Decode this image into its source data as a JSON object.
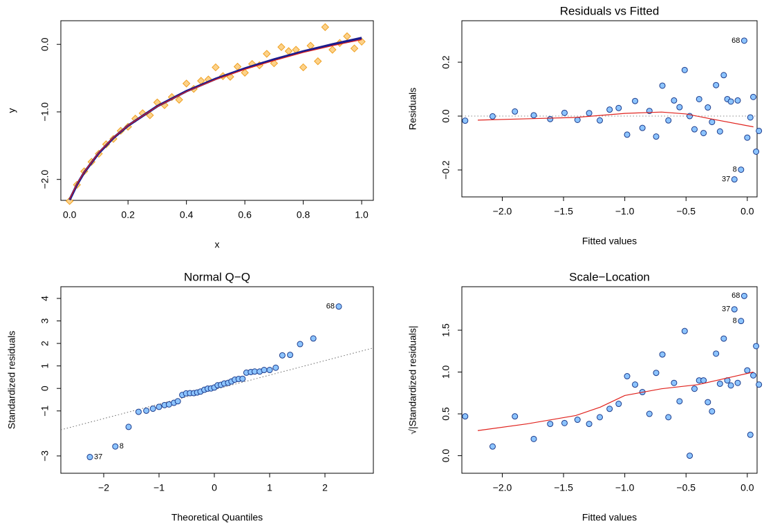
{
  "chart_data": [
    {
      "type": "scatter",
      "x_label": "x",
      "y_label": "y",
      "xlim": [
        -0.03,
        1.04
      ],
      "ylim": [
        -2.31,
        0.35
      ],
      "xticks": [
        {
          "value": 0,
          "label": "0.0"
        },
        {
          "value": 0.2,
          "label": "0.2"
        },
        {
          "value": 0.4,
          "label": "0.4"
        },
        {
          "value": 0.6,
          "label": "0.6"
        },
        {
          "value": 0.8,
          "label": "0.8"
        },
        {
          "value": 1,
          "label": "1.0"
        }
      ],
      "yticks": [
        {
          "value": -2,
          "label": "−2.0"
        },
        {
          "value": -1,
          "label": "−1.0"
        },
        {
          "value": 0,
          "label": "0.0"
        }
      ],
      "series": [
        {
          "kind": "points",
          "marker": "diamond",
          "color": "#f0a020",
          "fill": "#fcd28a",
          "x": [
            0,
            0.025,
            0.05,
            0.075,
            0.1,
            0.125,
            0.15,
            0.175,
            0.2,
            0.225,
            0.25,
            0.275,
            0.3,
            0.325,
            0.35,
            0.375,
            0.4,
            0.425,
            0.45,
            0.475,
            0.5,
            0.525,
            0.55,
            0.575,
            0.6,
            0.625,
            0.65,
            0.675,
            0.7,
            0.725,
            0.75,
            0.775,
            0.8,
            0.825,
            0.85,
            0.875,
            0.9,
            0.925,
            0.95,
            0.975,
            1.0
          ],
          "values": [
            -2.32,
            -2.08,
            -1.88,
            -1.74,
            -1.62,
            -1.48,
            -1.4,
            -1.28,
            -1.22,
            -1.1,
            -1.02,
            -1.05,
            -0.86,
            -0.9,
            -0.78,
            -0.82,
            -0.58,
            -0.66,
            -0.54,
            -0.52,
            -0.34,
            -0.47,
            -0.48,
            -0.33,
            -0.42,
            -0.29,
            -0.31,
            -0.14,
            -0.28,
            -0.04,
            -0.1,
            -0.08,
            -0.34,
            -0.02,
            -0.25,
            0.255,
            -0.08,
            0.02,
            0.12,
            -0.06,
            0.04
          ]
        },
        {
          "kind": "line",
          "color": "#1c1c8e",
          "width": 3.5,
          "x": [
            0,
            0.025,
            0.05,
            0.1,
            0.15,
            0.2,
            0.3,
            0.4,
            0.5,
            0.6,
            0.7,
            0.8,
            0.9,
            1.0
          ],
          "values": [
            -2.303,
            -2.079,
            -1.897,
            -1.609,
            -1.386,
            -1.204,
            -0.916,
            -0.693,
            -0.511,
            -0.357,
            -0.223,
            -0.105,
            0.0,
            0.095
          ]
        },
        {
          "kind": "line",
          "color": "#e0201b",
          "width": 1.2,
          "x": [
            0,
            0.025,
            0.05,
            0.1,
            0.15,
            0.2,
            0.3,
            0.4,
            0.5,
            0.6,
            0.7,
            0.8,
            0.9,
            1.0
          ],
          "values": [
            -2.29,
            -2.07,
            -1.89,
            -1.6,
            -1.38,
            -1.2,
            -0.92,
            -0.7,
            -0.52,
            -0.37,
            -0.24,
            -0.12,
            -0.02,
            0.07
          ]
        }
      ]
    },
    {
      "type": "scatter",
      "title": "Residuals vs Fitted",
      "x_label": "Fitted values",
      "y_label": "Residuals",
      "xlim": [
        -2.33,
        0.08
      ],
      "ylim": [
        -0.3,
        0.354
      ],
      "xticks": [
        {
          "value": -2,
          "label": "−2.0"
        },
        {
          "value": -1.5,
          "label": "−1.5"
        },
        {
          "value": -1,
          "label": "−1.0"
        },
        {
          "value": -0.5,
          "label": "−0.5"
        },
        {
          "value": 0,
          "label": "0.0"
        }
      ],
      "yticks": [
        {
          "value": -0.2,
          "label": "−0.2"
        },
        {
          "value": 0,
          "label": "0.0"
        },
        {
          "value": 0.2,
          "label": "0.2"
        }
      ],
      "series": [
        {
          "kind": "dotted",
          "color": "#888888",
          "x": [
            -2.33,
            0.08
          ],
          "values": [
            0,
            0
          ]
        },
        {
          "kind": "points",
          "marker": "circle",
          "color": "#1a3a8a",
          "fill": "#8cc4ff",
          "x": [
            -2.303,
            -2.079,
            -1.897,
            -1.743,
            -1.609,
            -1.492,
            -1.386,
            -1.291,
            -1.204,
            -1.124,
            -1.05,
            -0.981,
            -0.916,
            -0.856,
            -0.799,
            -0.744,
            -0.693,
            -0.644,
            -0.598,
            -0.553,
            -0.511,
            -0.47,
            -0.431,
            -0.393,
            -0.357,
            -0.322,
            -0.288,
            -0.255,
            -0.223,
            -0.192,
            -0.163,
            -0.134,
            -0.105,
            -0.078,
            -0.051,
            -0.025,
            0.0,
            0.025,
            0.049,
            0.072,
            0.095
          ],
          "values": [
            -0.017,
            -0.001,
            0.017,
            0.003,
            -0.011,
            0.012,
            -0.014,
            0.011,
            -0.016,
            0.024,
            0.03,
            -0.069,
            0.056,
            -0.044,
            0.019,
            -0.076,
            0.113,
            -0.016,
            0.058,
            0.033,
            0.171,
            0.0,
            -0.049,
            0.063,
            -0.063,
            0.032,
            -0.022,
            0.115,
            -0.057,
            0.152,
            0.063,
            0.054,
            -0.235,
            0.058,
            -0.199,
            0.28,
            -0.08,
            -0.005,
            0.071,
            -0.132,
            -0.055
          ],
          "point_labels": [
            null,
            null,
            null,
            null,
            null,
            null,
            null,
            null,
            null,
            null,
            null,
            null,
            null,
            null,
            null,
            null,
            null,
            null,
            null,
            null,
            null,
            null,
            null,
            null,
            null,
            null,
            null,
            null,
            null,
            null,
            null,
            null,
            "37",
            null,
            "8",
            "68",
            null,
            null,
            null,
            null,
            null
          ]
        },
        {
          "kind": "line",
          "color": "#e0201b",
          "width": 1.2,
          "x": [
            -2.2,
            -1.8,
            -1.4,
            -1.0,
            -0.7,
            -0.5,
            -0.3,
            0.05
          ],
          "values": [
            -0.015,
            -0.01,
            -0.005,
            0.01,
            0.015,
            0.008,
            -0.01,
            -0.04
          ]
        }
      ]
    },
    {
      "type": "scatter",
      "title": "Normal Q−Q",
      "x_label": "Theoretical Quantiles",
      "y_label": "Standardized residuals",
      "xlim": [
        -2.775,
        2.875
      ],
      "ylim": [
        -3.77,
        4.52
      ],
      "xticks": [
        {
          "value": -2,
          "label": "−2"
        },
        {
          "value": -1,
          "label": "−1"
        },
        0,
        1,
        2
      ],
      "yticks": [
        {
          "value": -3,
          "label": "−3"
        },
        {
          "value": -1,
          "label": "−1"
        },
        0,
        1,
        2,
        3,
        4
      ],
      "series": [
        {
          "kind": "dotted",
          "color": "#666666",
          "x": [
            -2.775,
            2.875
          ],
          "values": [
            -1.84,
            1.8
          ]
        },
        {
          "kind": "points",
          "marker": "circle",
          "color": "#1a3a8a",
          "fill": "#8cc4ff",
          "x": [
            -2.25,
            -1.79,
            -1.55,
            -1.37,
            -1.23,
            -1.11,
            -1.0,
            -0.9,
            -0.82,
            -0.73,
            -0.66,
            -0.58,
            -0.51,
            -0.44,
            -0.37,
            -0.31,
            -0.25,
            -0.18,
            -0.12,
            -0.06,
            0,
            0.06,
            0.12,
            0.18,
            0.25,
            0.31,
            0.37,
            0.44,
            0.51,
            0.58,
            0.66,
            0.73,
            0.82,
            0.9,
            1.0,
            1.11,
            1.23,
            1.37,
            1.55,
            1.79,
            2.25
          ],
          "values": [
            -3.05,
            -2.58,
            -1.71,
            -1.04,
            -0.99,
            -0.9,
            -0.82,
            -0.74,
            -0.71,
            -0.64,
            -0.57,
            -0.29,
            -0.22,
            -0.21,
            -0.21,
            -0.18,
            -0.14,
            -0.06,
            -0.01,
            0.0,
            0.04,
            0.14,
            0.16,
            0.22,
            0.25,
            0.31,
            0.39,
            0.42,
            0.43,
            0.7,
            0.73,
            0.75,
            0.75,
            0.82,
            0.82,
            0.92,
            1.47,
            1.49,
            1.97,
            2.22,
            3.64
          ],
          "point_labels": [
            "37",
            "8",
            null,
            null,
            null,
            null,
            null,
            null,
            null,
            null,
            null,
            null,
            null,
            null,
            null,
            null,
            null,
            null,
            null,
            null,
            null,
            null,
            null,
            null,
            null,
            null,
            null,
            null,
            null,
            null,
            null,
            null,
            null,
            null,
            null,
            null,
            null,
            null,
            null,
            null,
            "68"
          ]
        }
      ]
    },
    {
      "type": "scatter",
      "title": "Scale−Location",
      "x_label": "Fitted values",
      "y_label": "√|Standardized residuals|",
      "xlim": [
        -2.33,
        0.08
      ],
      "ylim": [
        -0.21,
        2.02
      ],
      "xticks": [
        {
          "value": -2,
          "label": "−2.0"
        },
        {
          "value": -1.5,
          "label": "−1.5"
        },
        {
          "value": -1,
          "label": "−1.0"
        },
        {
          "value": -0.5,
          "label": "−0.5"
        },
        {
          "value": 0,
          "label": "0.0"
        }
      ],
      "yticks": [
        {
          "value": 0,
          "label": "0.0"
        },
        {
          "value": 0.5,
          "label": "0.5"
        },
        {
          "value": 1,
          "label": "1.0"
        },
        {
          "value": 1.5,
          "label": "1.5"
        }
      ],
      "series": [
        {
          "kind": "points",
          "marker": "circle",
          "color": "#1a3a8a",
          "fill": "#8cc4ff",
          "x": [
            -2.303,
            -2.079,
            -1.897,
            -1.743,
            -1.609,
            -1.492,
            -1.386,
            -1.291,
            -1.204,
            -1.124,
            -1.05,
            -0.981,
            -0.916,
            -0.856,
            -0.799,
            -0.744,
            -0.693,
            -0.644,
            -0.598,
            -0.553,
            -0.511,
            -0.47,
            -0.431,
            -0.393,
            -0.357,
            -0.322,
            -0.288,
            -0.255,
            -0.223,
            -0.192,
            -0.163,
            -0.134,
            -0.105,
            -0.078,
            -0.051,
            -0.025,
            0.0,
            0.025,
            0.049,
            0.072,
            0.095
          ],
          "values": [
            0.47,
            0.11,
            0.47,
            0.2,
            0.38,
            0.39,
            0.43,
            0.38,
            0.46,
            0.56,
            0.62,
            0.95,
            0.85,
            0.76,
            0.5,
            0.99,
            1.21,
            0.46,
            0.87,
            0.65,
            1.49,
            0.0,
            0.8,
            0.9,
            0.9,
            0.64,
            0.53,
            1.22,
            0.86,
            1.4,
            0.9,
            0.84,
            1.75,
            0.87,
            1.61,
            1.91,
            1.02,
            0.25,
            0.96,
            1.31,
            0.85
          ],
          "point_labels": [
            null,
            null,
            null,
            null,
            null,
            null,
            null,
            null,
            null,
            null,
            null,
            null,
            null,
            null,
            null,
            null,
            null,
            null,
            null,
            null,
            null,
            null,
            null,
            null,
            null,
            null,
            null,
            null,
            null,
            null,
            null,
            null,
            "37",
            null,
            "8",
            "68",
            null,
            null,
            null,
            null,
            null
          ]
        },
        {
          "kind": "line",
          "color": "#e0201b",
          "width": 1.2,
          "x": [
            -2.2,
            -1.8,
            -1.4,
            -1.2,
            -1.0,
            -0.7,
            -0.4,
            -0.1,
            0.05
          ],
          "values": [
            0.3,
            0.38,
            0.48,
            0.58,
            0.72,
            0.8,
            0.85,
            0.95,
            1.0
          ]
        }
      ]
    }
  ]
}
